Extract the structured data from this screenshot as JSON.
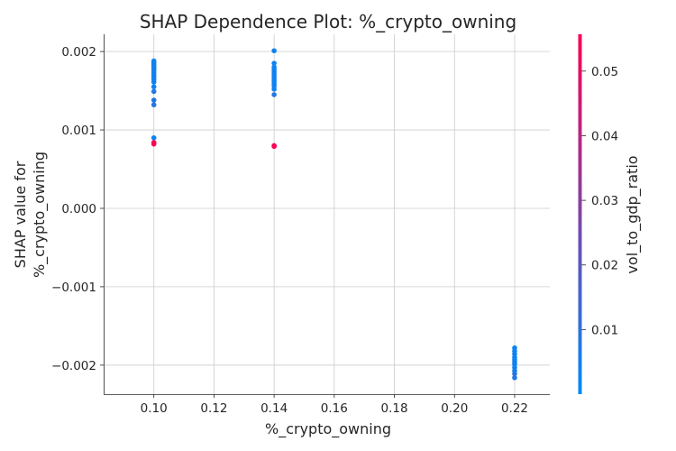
{
  "chart_data": {
    "type": "scatter",
    "title": "SHAP Dependence Plot: %_crypto_owning",
    "xlabel": "%_crypto_owning",
    "ylabel": [
      "SHAP value for",
      "%_crypto_owning"
    ],
    "colorbar_label": "vol_to_gdp_ratio",
    "xlim": [
      0.0833,
      0.2317
    ],
    "ylim": [
      -0.00237,
      0.00222
    ],
    "xticks": [
      0.1,
      0.12,
      0.14,
      0.16,
      0.18,
      0.2,
      0.22
    ],
    "xtick_labels": [
      "0.10",
      "0.12",
      "0.14",
      "0.16",
      "0.18",
      "0.20",
      "0.22"
    ],
    "yticks": [
      -0.002,
      -0.001,
      0.0,
      0.001,
      0.002
    ],
    "ytick_labels": [
      "−0.002",
      "−0.001",
      "0.000",
      "0.001",
      "0.002"
    ],
    "colorbar_range": [
      0.0,
      0.0557
    ],
    "colorbar_ticks": [
      0.01,
      0.02,
      0.03,
      0.04,
      0.05
    ],
    "colorbar_tick_labels": [
      "0.01",
      "0.02",
      "0.03",
      "0.04",
      "0.05"
    ],
    "colormap": [
      "#008afb",
      "#ff0052"
    ],
    "grid": true,
    "points": [
      {
        "x": 0.1,
        "y": 0.00188,
        "c": 0.003
      },
      {
        "x": 0.1,
        "y": 0.00186,
        "c": 0.003
      },
      {
        "x": 0.1,
        "y": 0.00184,
        "c": 0.004
      },
      {
        "x": 0.1,
        "y": 0.00182,
        "c": 0.003
      },
      {
        "x": 0.1,
        "y": 0.0018,
        "c": 0.003
      },
      {
        "x": 0.1,
        "y": 0.00178,
        "c": 0.004
      },
      {
        "x": 0.1,
        "y": 0.00176,
        "c": 0.003
      },
      {
        "x": 0.1,
        "y": 0.00173,
        "c": 0.003
      },
      {
        "x": 0.1,
        "y": 0.0017,
        "c": 0.004
      },
      {
        "x": 0.1,
        "y": 0.00167,
        "c": 0.003
      },
      {
        "x": 0.1,
        "y": 0.00164,
        "c": 0.003
      },
      {
        "x": 0.1,
        "y": 0.00161,
        "c": 0.004
      },
      {
        "x": 0.1,
        "y": 0.00155,
        "c": 0.003
      },
      {
        "x": 0.1,
        "y": 0.00149,
        "c": 0.008
      },
      {
        "x": 0.1,
        "y": 0.00138,
        "c": 0.008
      },
      {
        "x": 0.1,
        "y": 0.00132,
        "c": 0.008
      },
      {
        "x": 0.1,
        "y": 0.0009,
        "c": 0.003
      },
      {
        "x": 0.1,
        "y": 0.00084,
        "c": 0.055
      },
      {
        "x": 0.1,
        "y": 0.00082,
        "c": 0.055
      },
      {
        "x": 0.14,
        "y": 0.00201,
        "c": 0.004
      },
      {
        "x": 0.14,
        "y": 0.00185,
        "c": 0.003
      },
      {
        "x": 0.14,
        "y": 0.0018,
        "c": 0.003
      },
      {
        "x": 0.14,
        "y": 0.00177,
        "c": 0.003
      },
      {
        "x": 0.14,
        "y": 0.00174,
        "c": 0.004
      },
      {
        "x": 0.14,
        "y": 0.00171,
        "c": 0.003
      },
      {
        "x": 0.14,
        "y": 0.00168,
        "c": 0.003
      },
      {
        "x": 0.14,
        "y": 0.00165,
        "c": 0.004
      },
      {
        "x": 0.14,
        "y": 0.00162,
        "c": 0.003
      },
      {
        "x": 0.14,
        "y": 0.00159,
        "c": 0.003
      },
      {
        "x": 0.14,
        "y": 0.00156,
        "c": 0.004
      },
      {
        "x": 0.14,
        "y": 0.00152,
        "c": 0.003
      },
      {
        "x": 0.14,
        "y": 0.00145,
        "c": 0.008
      },
      {
        "x": 0.14,
        "y": 0.0008,
        "c": 0.055
      },
      {
        "x": 0.14,
        "y": 0.00079,
        "c": 0.055
      },
      {
        "x": 0.22,
        "y": -0.00178,
        "c": 0.003
      },
      {
        "x": 0.22,
        "y": -0.00182,
        "c": 0.003
      },
      {
        "x": 0.22,
        "y": -0.00186,
        "c": 0.004
      },
      {
        "x": 0.22,
        "y": -0.0019,
        "c": 0.003
      },
      {
        "x": 0.22,
        "y": -0.00193,
        "c": 0.003
      },
      {
        "x": 0.22,
        "y": -0.00196,
        "c": 0.004
      },
      {
        "x": 0.22,
        "y": -0.00199,
        "c": 0.003
      },
      {
        "x": 0.22,
        "y": -0.00203,
        "c": 0.003
      },
      {
        "x": 0.22,
        "y": -0.00207,
        "c": 0.004
      },
      {
        "x": 0.22,
        "y": -0.00211,
        "c": 0.008
      },
      {
        "x": 0.22,
        "y": -0.00216,
        "c": 0.008
      }
    ]
  }
}
